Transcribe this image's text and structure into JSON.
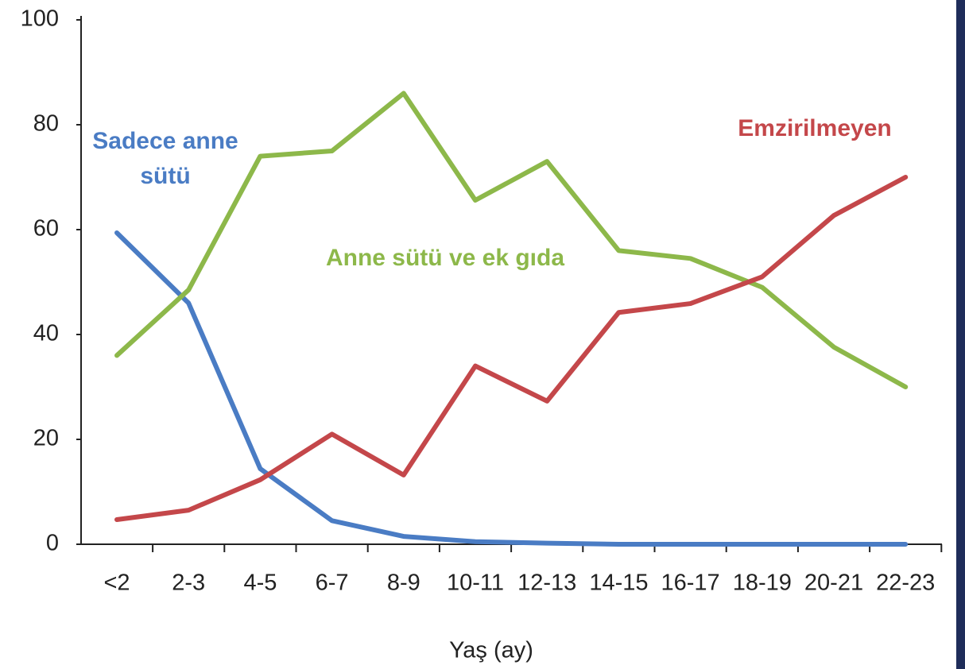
{
  "chart_data": {
    "type": "line",
    "categories": [
      "<2",
      "2-3",
      "4-5",
      "6-7",
      "8-9",
      "10-11",
      "12-13",
      "14-15",
      "16-17",
      "18-19",
      "20-21",
      "22-23"
    ],
    "series": [
      {
        "name": "Sadece anne sütü",
        "color": "#4a7cc4",
        "values": [
          59.4,
          46,
          14.4,
          4.5,
          1.5,
          0.5,
          0.2,
          0,
          0,
          0,
          0,
          0
        ]
      },
      {
        "name": "Anne sütü ve ek gıda",
        "color": "#8db84a",
        "values": [
          36,
          48.5,
          74,
          75,
          86,
          65.6,
          73,
          56,
          54.5,
          49,
          37.6,
          30
        ]
      },
      {
        "name": "Emzirilmeyen",
        "color": "#c4474a",
        "values": [
          4.7,
          6.5,
          12.3,
          21,
          13.2,
          34,
          27.3,
          44.2,
          45.9,
          51,
          62.7,
          70
        ]
      }
    ],
    "x_label": "Yaş (ay)",
    "ylim": [
      0,
      100
    ],
    "yticks": [
      0,
      20,
      40,
      60,
      80,
      100
    ],
    "grid": false
  }
}
